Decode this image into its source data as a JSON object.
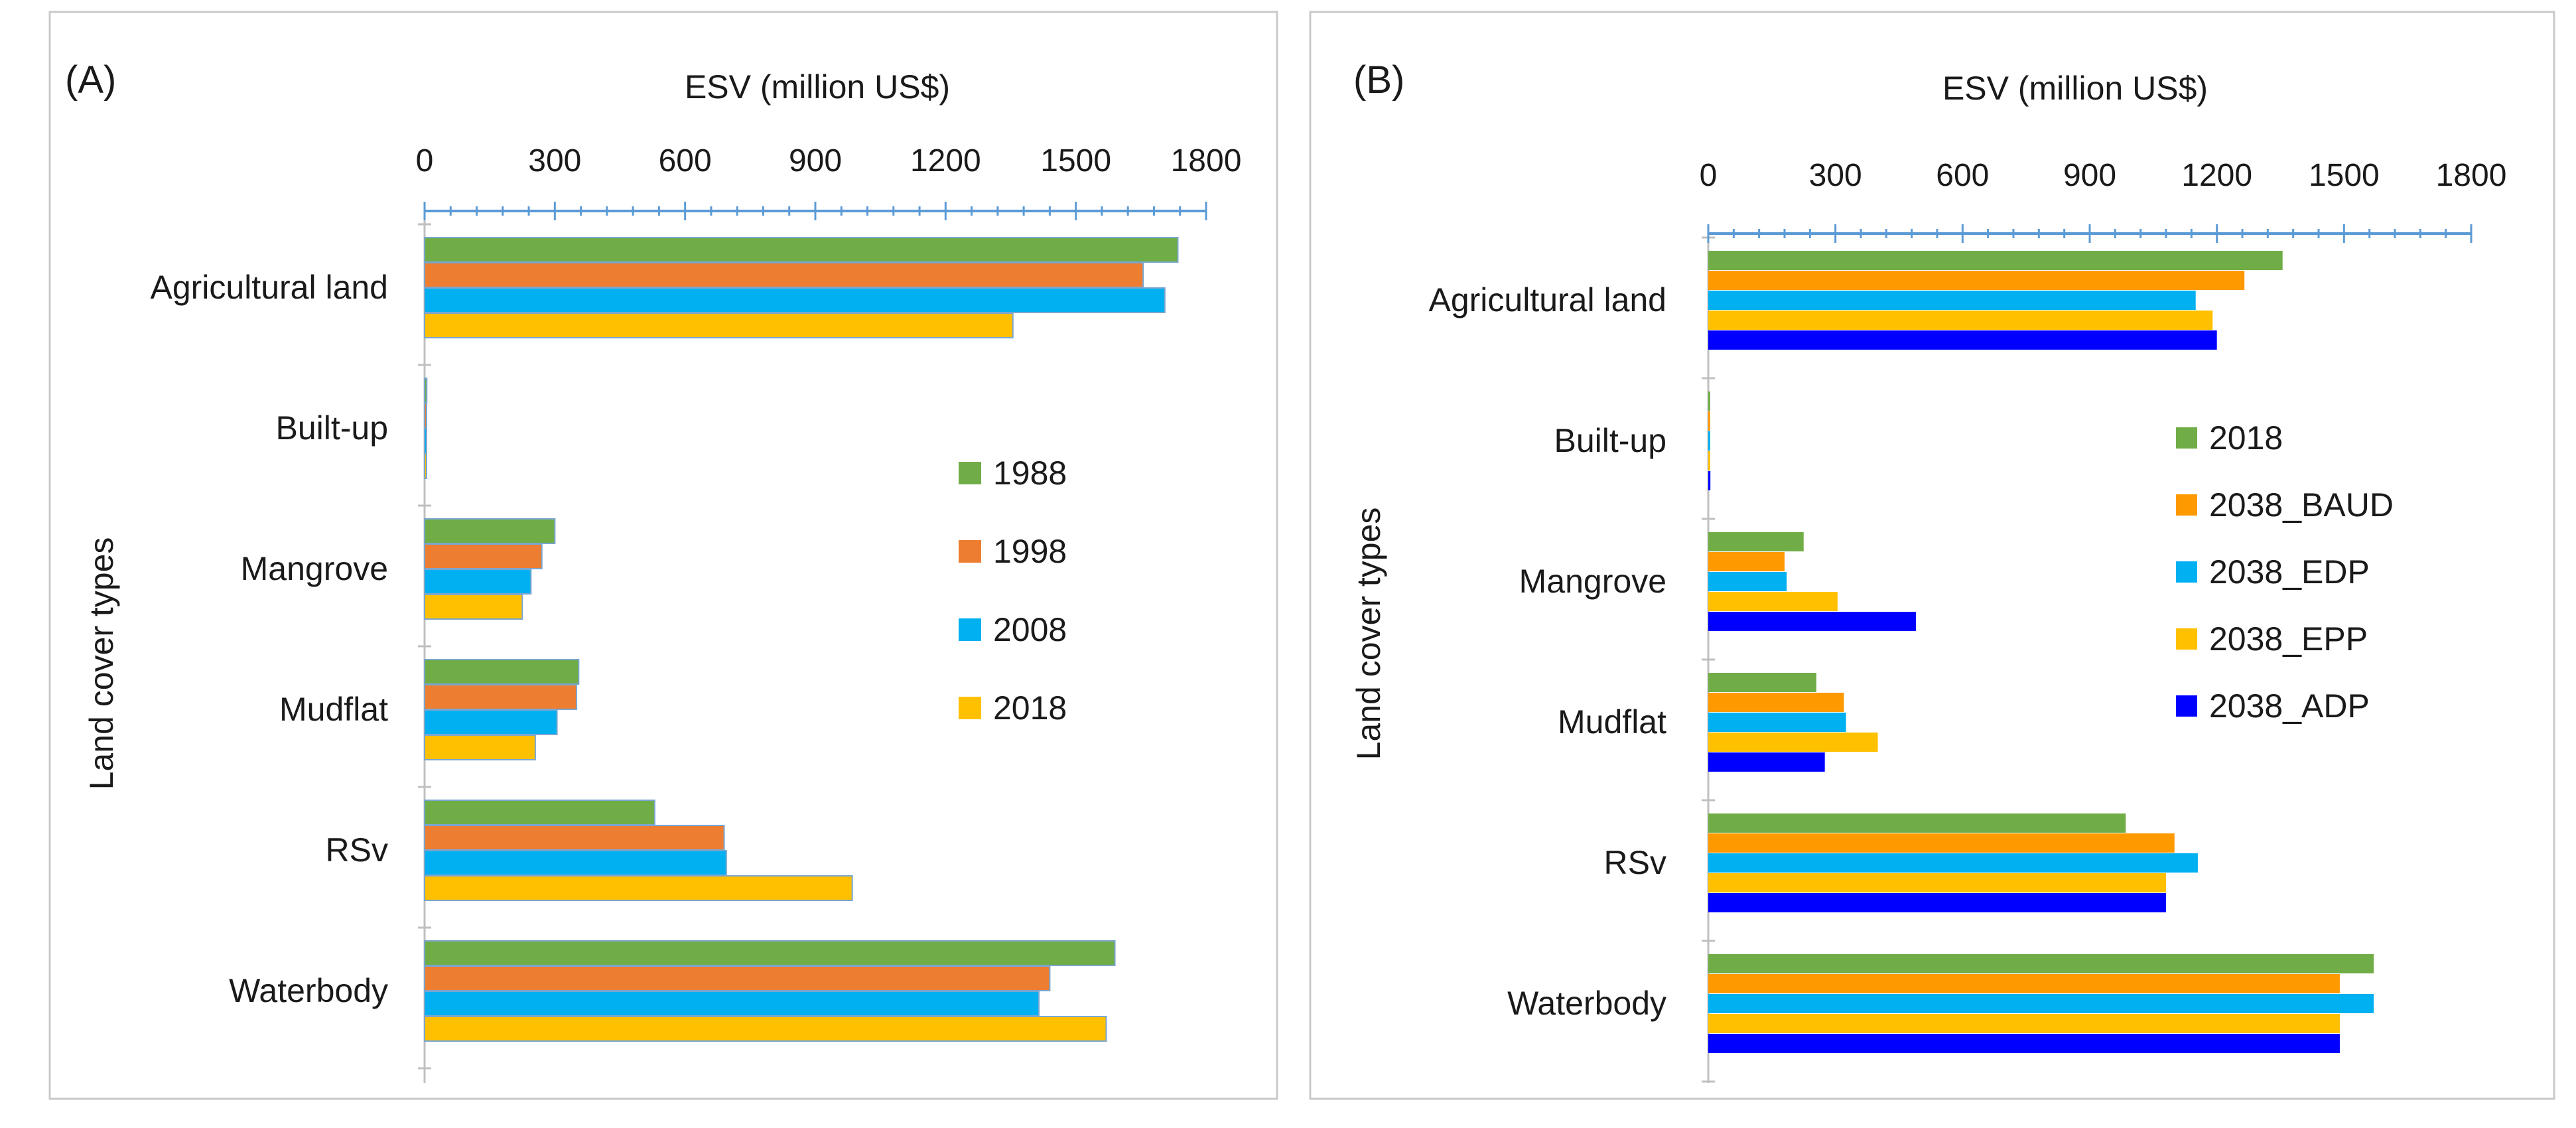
{
  "chart_data": [
    {
      "type": "bar",
      "orientation": "horizontal",
      "panel_label": "(A)",
      "title": "ESV (million US$)",
      "xlabel": "ESV (million US$)",
      "ylabel": "Land cover types",
      "xlim": [
        0,
        1800
      ],
      "xticks": [
        "0",
        "300",
        "600",
        "900",
        "1200",
        "1500",
        "1800"
      ],
      "categories": [
        "Agricultural land",
        "Built-up",
        "Mangrove",
        "Mudflat",
        "RSv",
        "Waterbody"
      ],
      "legend_position": "right-middle",
      "series": [
        {
          "name": "1988",
          "color": "#70AD47",
          "values": [
            1735,
            5,
            300,
            355,
            530,
            1590
          ]
        },
        {
          "name": "1998",
          "color": "#ED7D31",
          "values": [
            1655,
            3,
            270,
            350,
            690,
            1440
          ]
        },
        {
          "name": "2008",
          "color": "#00B0F0",
          "values": [
            1705,
            2,
            245,
            305,
            695,
            1415
          ]
        },
        {
          "name": "2018",
          "color": "#FFC000",
          "values": [
            1355,
            2,
            225,
            255,
            985,
            1570
          ]
        }
      ]
    },
    {
      "type": "bar",
      "orientation": "horizontal",
      "panel_label": "(B)",
      "title": "ESV (million US$)",
      "xlabel": "ESV (million US$)",
      "ylabel": "Land cover types",
      "xlim": [
        0,
        1800
      ],
      "xticks": [
        "0",
        "300",
        "600",
        "900",
        "1200",
        "1500",
        "1800"
      ],
      "categories": [
        "Agricultural land",
        "Built-up",
        "Mangrove",
        "Mudflat",
        "RSv",
        "Waterbody"
      ],
      "legend_position": "right-middle",
      "series": [
        {
          "name": "2018",
          "color": "#70AD47",
          "values": [
            1355,
            2,
            225,
            255,
            985,
            1570
          ]
        },
        {
          "name": "2038_BAUD",
          "color": "#FF9900",
          "values": [
            1265,
            2,
            180,
            320,
            1100,
            1490
          ]
        },
        {
          "name": "2038_EDP",
          "color": "#00B0F0",
          "values": [
            1150,
            2,
            185,
            325,
            1155,
            1570
          ]
        },
        {
          "name": "2038_EPP",
          "color": "#FFC000",
          "values": [
            1190,
            2,
            305,
            400,
            1080,
            1490
          ]
        },
        {
          "name": "2038_ADP",
          "color": "#0000FF",
          "values": [
            1200,
            5,
            490,
            275,
            1080,
            1490
          ]
        }
      ]
    }
  ]
}
